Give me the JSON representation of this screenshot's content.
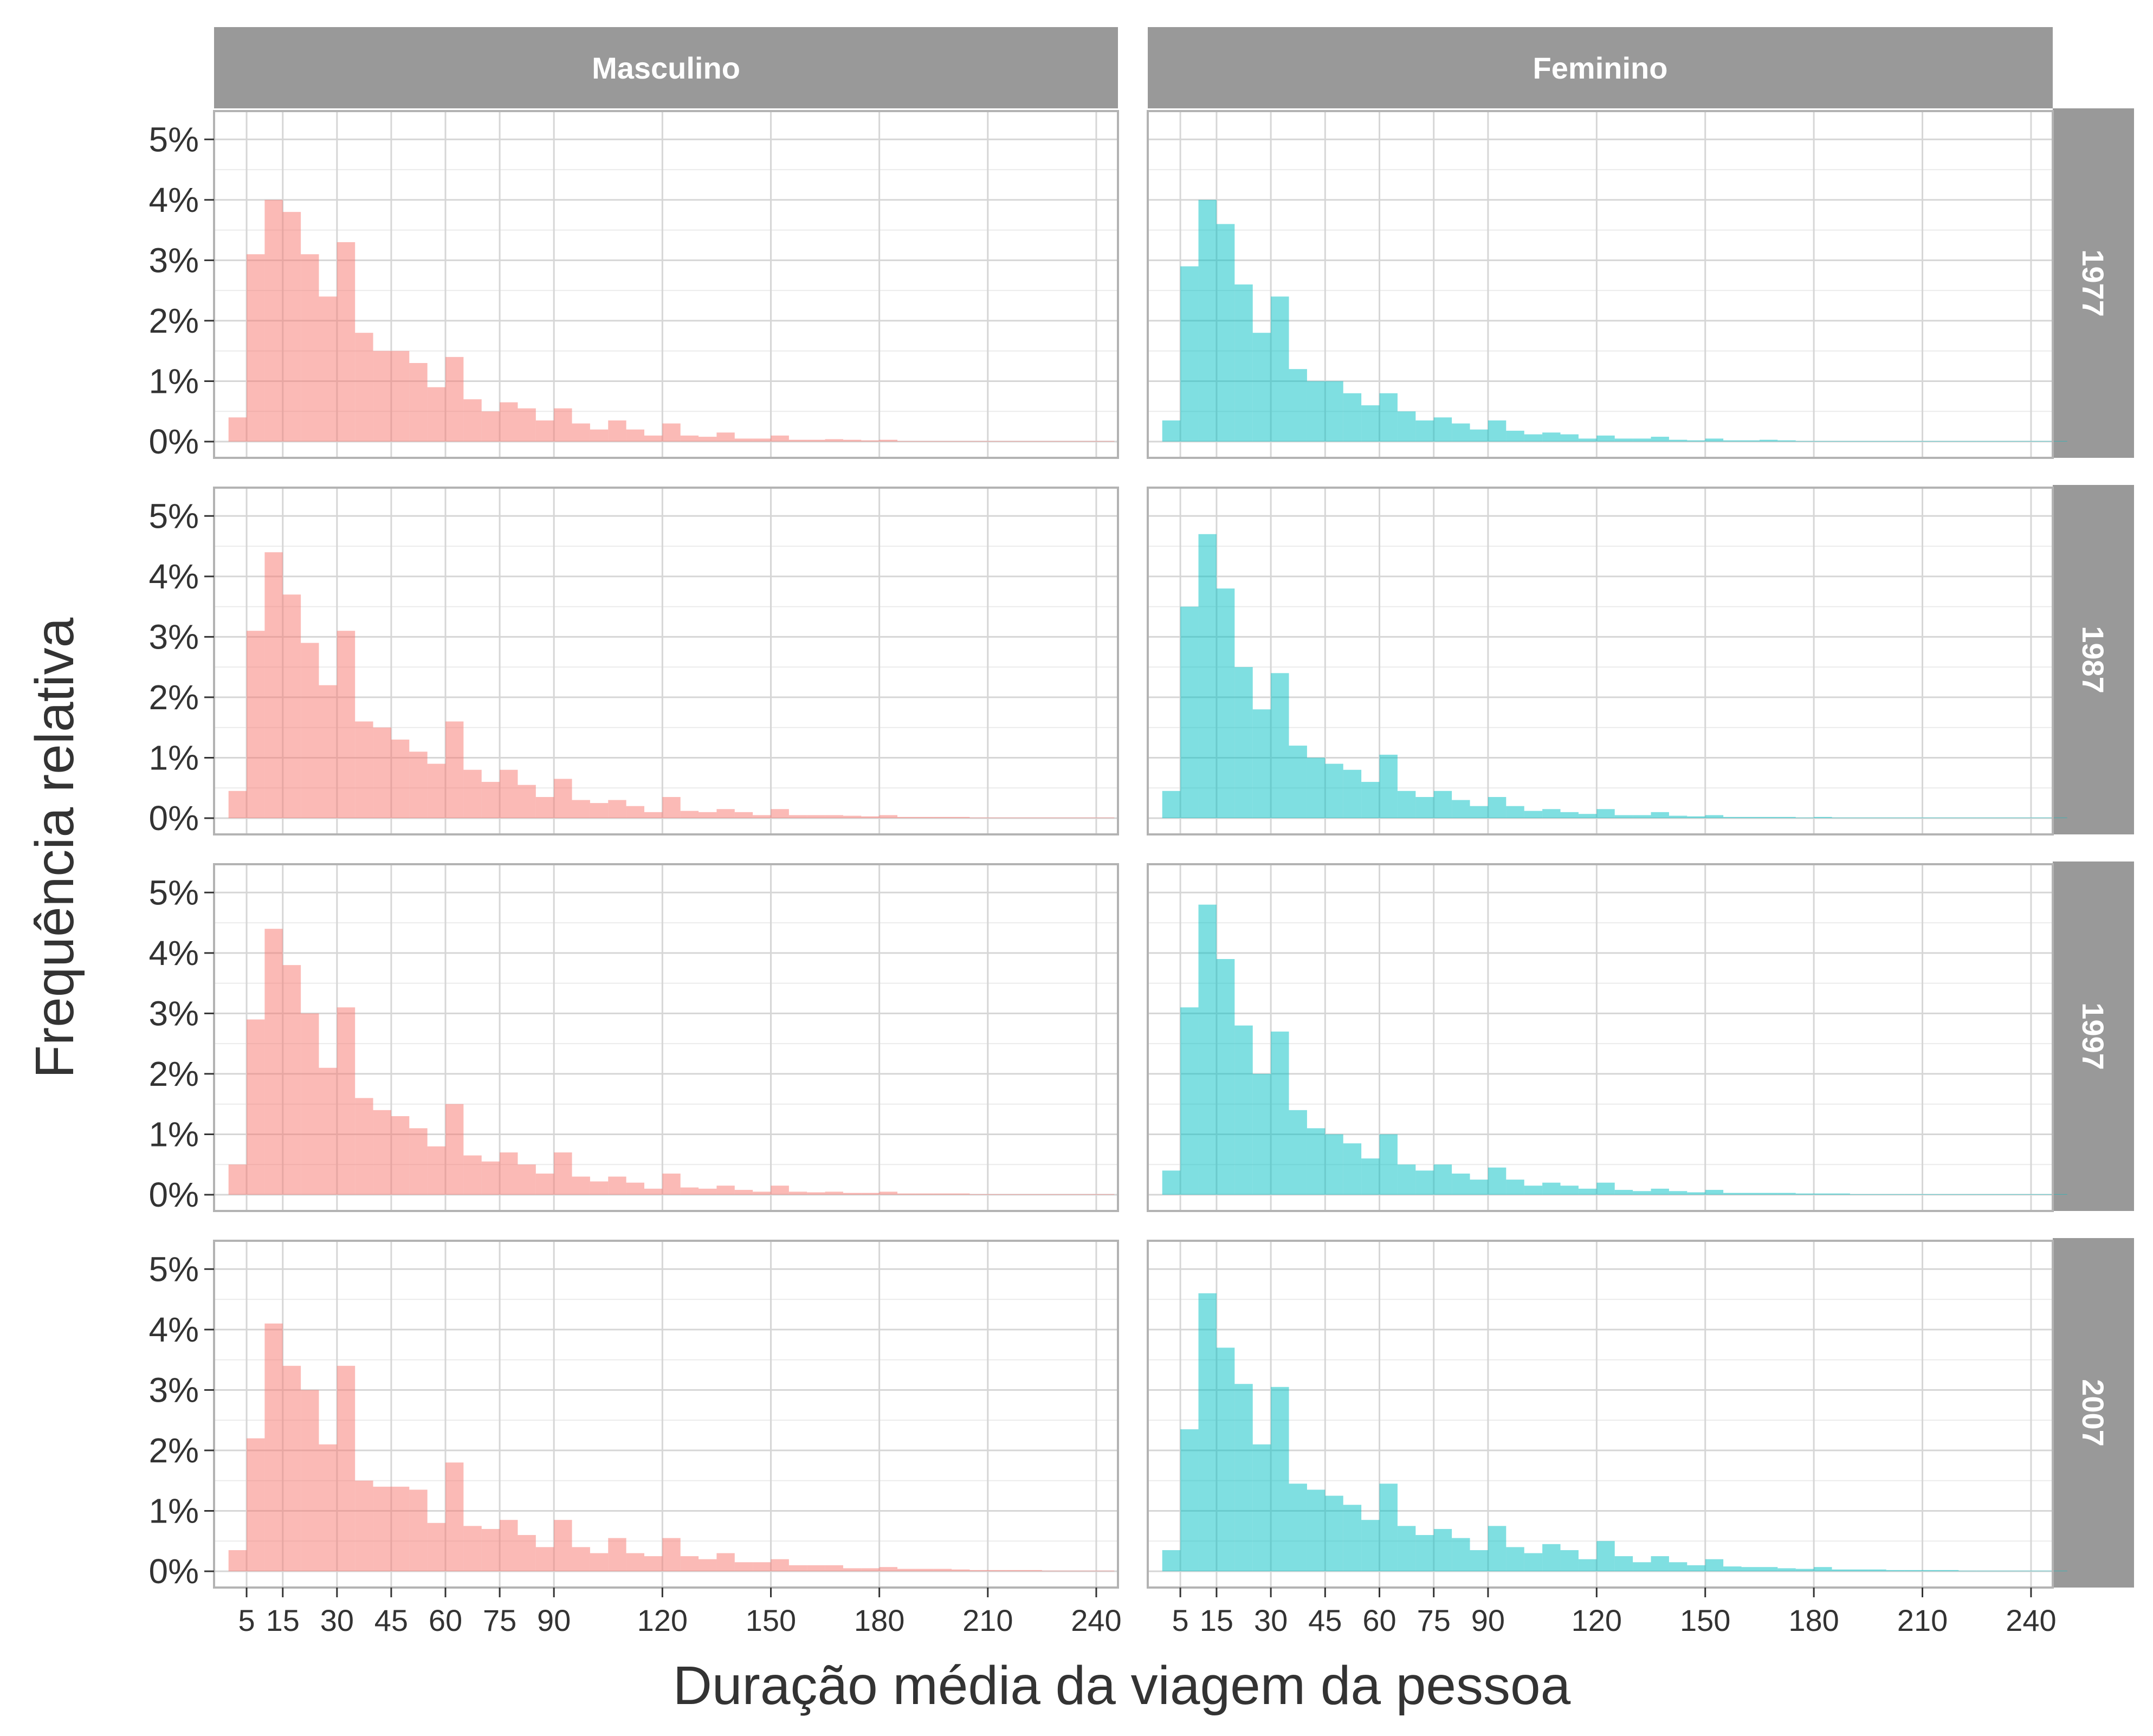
{
  "chart_data": {
    "type": "bar",
    "subtype": "faceted-histogram",
    "xlabel": "Duração média da viagem da pessoa",
    "ylabel": "Frequência relativa",
    "x_ticks": [
      5,
      15,
      30,
      45,
      60,
      75,
      90,
      120,
      150,
      180,
      210,
      240
    ],
    "xlim": [
      -4,
      246
    ],
    "y_ticks": [
      "0%",
      "1%",
      "2%",
      "3%",
      "4%",
      "5%"
    ],
    "ylim": [
      0,
      5.2
    ],
    "y_unit": "%",
    "bin_start": 0,
    "bin_width": 5,
    "columns": [
      {
        "label": "Masculino",
        "color": "#f8766d"
      },
      {
        "label": "Feminino",
        "color": "#00bfc4"
      }
    ],
    "rows": [
      "1977",
      "1987",
      "1997",
      "2007"
    ],
    "grid": true,
    "panels": [
      {
        "row": "1977",
        "column": "Masculino",
        "values": [
          0.4,
          3.1,
          4.0,
          3.8,
          3.1,
          2.4,
          3.3,
          1.8,
          1.5,
          1.5,
          1.3,
          0.9,
          1.4,
          0.7,
          0.5,
          0.65,
          0.55,
          0.35,
          0.55,
          0.3,
          0.2,
          0.35,
          0.2,
          0.1,
          0.3,
          0.1,
          0.08,
          0.15,
          0.05,
          0.05,
          0.1,
          0.03,
          0.03,
          0.04,
          0.03,
          0.02,
          0.03,
          0.01,
          0.01,
          0.01,
          0.01,
          0.01,
          0.01,
          0.01,
          0.01,
          0.01,
          0.01,
          0.01,
          0.01
        ]
      },
      {
        "row": "1977",
        "column": "Feminino",
        "values": [
          0.35,
          2.9,
          4.0,
          3.6,
          2.6,
          1.8,
          2.4,
          1.2,
          1.0,
          1.0,
          0.8,
          0.6,
          0.8,
          0.5,
          0.35,
          0.4,
          0.3,
          0.2,
          0.35,
          0.18,
          0.12,
          0.15,
          0.12,
          0.05,
          0.1,
          0.05,
          0.05,
          0.08,
          0.03,
          0.02,
          0.05,
          0.02,
          0.02,
          0.03,
          0.02,
          0.01,
          0.01,
          0.01,
          0.01,
          0.01,
          0.01,
          0.01,
          0.01,
          0.01,
          0.01,
          0.01,
          0.01,
          0.01,
          0.01,
          0.01
        ]
      },
      {
        "row": "1987",
        "column": "Masculino",
        "values": [
          0.45,
          3.1,
          4.4,
          3.7,
          2.9,
          2.2,
          3.1,
          1.6,
          1.5,
          1.3,
          1.1,
          0.9,
          1.6,
          0.8,
          0.6,
          0.8,
          0.55,
          0.35,
          0.65,
          0.3,
          0.25,
          0.3,
          0.2,
          0.1,
          0.35,
          0.12,
          0.1,
          0.15,
          0.1,
          0.05,
          0.15,
          0.05,
          0.05,
          0.05,
          0.04,
          0.03,
          0.05,
          0.02,
          0.02,
          0.02,
          0.02,
          0.01,
          0.01,
          0.01,
          0.01,
          0.01,
          0.01,
          0.01,
          0.01
        ]
      },
      {
        "row": "1987",
        "column": "Feminino",
        "values": [
          0.45,
          3.5,
          4.7,
          3.8,
          2.5,
          1.8,
          2.4,
          1.2,
          1.0,
          0.9,
          0.8,
          0.6,
          1.05,
          0.45,
          0.35,
          0.45,
          0.3,
          0.2,
          0.35,
          0.2,
          0.12,
          0.15,
          0.1,
          0.07,
          0.15,
          0.05,
          0.05,
          0.1,
          0.04,
          0.03,
          0.05,
          0.02,
          0.02,
          0.02,
          0.02,
          0.01,
          0.02,
          0.01,
          0.01,
          0.01,
          0.01,
          0.01,
          0.01,
          0.01,
          0.01,
          0.01,
          0.01,
          0.01,
          0.01,
          0.01
        ]
      },
      {
        "row": "1997",
        "column": "Masculino",
        "values": [
          0.5,
          2.9,
          4.4,
          3.8,
          3.0,
          2.1,
          3.1,
          1.6,
          1.4,
          1.3,
          1.1,
          0.8,
          1.5,
          0.65,
          0.55,
          0.7,
          0.5,
          0.35,
          0.7,
          0.3,
          0.22,
          0.3,
          0.2,
          0.1,
          0.35,
          0.12,
          0.1,
          0.15,
          0.08,
          0.05,
          0.15,
          0.05,
          0.04,
          0.05,
          0.03,
          0.03,
          0.05,
          0.02,
          0.02,
          0.02,
          0.02,
          0.01,
          0.01,
          0.01,
          0.01,
          0.01,
          0.01,
          0.01,
          0.01
        ]
      },
      {
        "row": "1997",
        "column": "Feminino",
        "values": [
          0.4,
          3.1,
          4.8,
          3.9,
          2.8,
          2.0,
          2.7,
          1.4,
          1.1,
          1.0,
          0.85,
          0.6,
          1.0,
          0.5,
          0.4,
          0.5,
          0.35,
          0.25,
          0.45,
          0.25,
          0.15,
          0.2,
          0.15,
          0.1,
          0.2,
          0.08,
          0.06,
          0.1,
          0.06,
          0.04,
          0.08,
          0.03,
          0.03,
          0.03,
          0.03,
          0.02,
          0.02,
          0.02,
          0.01,
          0.01,
          0.01,
          0.01,
          0.01,
          0.01,
          0.01,
          0.01,
          0.01,
          0.01,
          0.01,
          0.01
        ]
      },
      {
        "row": "2007",
        "column": "Masculino",
        "values": [
          0.35,
          2.2,
          4.1,
          3.4,
          3.0,
          2.1,
          3.4,
          1.5,
          1.4,
          1.4,
          1.35,
          0.8,
          1.8,
          0.75,
          0.7,
          0.85,
          0.6,
          0.4,
          0.85,
          0.4,
          0.3,
          0.55,
          0.3,
          0.25,
          0.55,
          0.25,
          0.2,
          0.3,
          0.15,
          0.15,
          0.2,
          0.1,
          0.1,
          0.1,
          0.05,
          0.05,
          0.07,
          0.04,
          0.04,
          0.04,
          0.03,
          0.02,
          0.02,
          0.02,
          0.02,
          0.01,
          0.01,
          0.01,
          0.01
        ]
      },
      {
        "row": "2007",
        "column": "Feminino",
        "values": [
          0.35,
          2.35,
          4.6,
          3.7,
          3.1,
          2.1,
          3.05,
          1.45,
          1.35,
          1.25,
          1.1,
          0.85,
          1.45,
          0.75,
          0.6,
          0.7,
          0.55,
          0.35,
          0.75,
          0.4,
          0.3,
          0.45,
          0.35,
          0.2,
          0.5,
          0.25,
          0.15,
          0.25,
          0.15,
          0.1,
          0.2,
          0.08,
          0.07,
          0.07,
          0.05,
          0.04,
          0.07,
          0.03,
          0.03,
          0.03,
          0.02,
          0.02,
          0.02,
          0.02,
          0.01,
          0.01,
          0.01,
          0.01,
          0.01,
          0.01
        ]
      }
    ]
  }
}
